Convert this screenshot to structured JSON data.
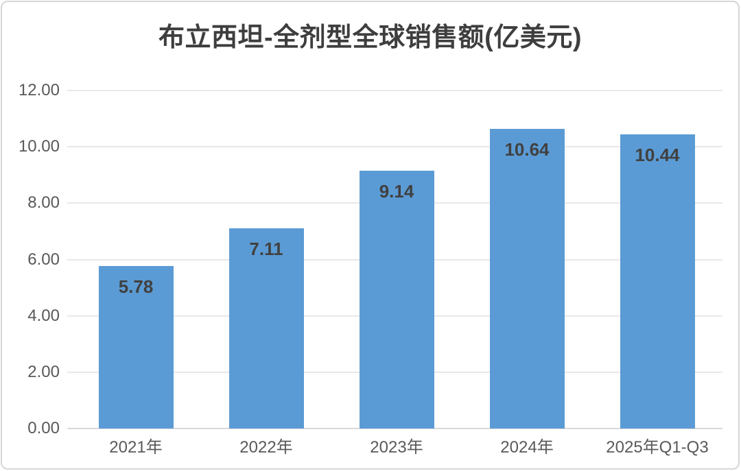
{
  "chart_data": {
    "type": "bar",
    "title": "布立西坦-全剂型全球销售额(亿美元)",
    "categories": [
      "2021年",
      "2022年",
      "2023年",
      "2024年",
      "2025年Q1-Q3"
    ],
    "values": [
      5.78,
      7.11,
      9.14,
      10.64,
      10.44
    ],
    "value_labels": [
      "5.78",
      "7.11",
      "9.14",
      "10.64",
      "10.44"
    ],
    "xlabel": "",
    "ylabel": "",
    "ylim": [
      0,
      12
    ],
    "ytick_step": 2,
    "ytick_labels": [
      "0.00",
      "2.00",
      "4.00",
      "6.00",
      "8.00",
      "10.00",
      "12.00"
    ],
    "grid": true,
    "legend": false,
    "data_labels_position": "inside-top"
  },
  "colors": {
    "bar": "#5B9BD5",
    "title_text": "#3E3E3E",
    "axis_text": "#595959",
    "data_label_text": "#404040",
    "gridline": "#E8E8E8",
    "axis_line": "#D9D9D9",
    "card_border": "#D6D6D6",
    "background": "#FFFFFF"
  }
}
